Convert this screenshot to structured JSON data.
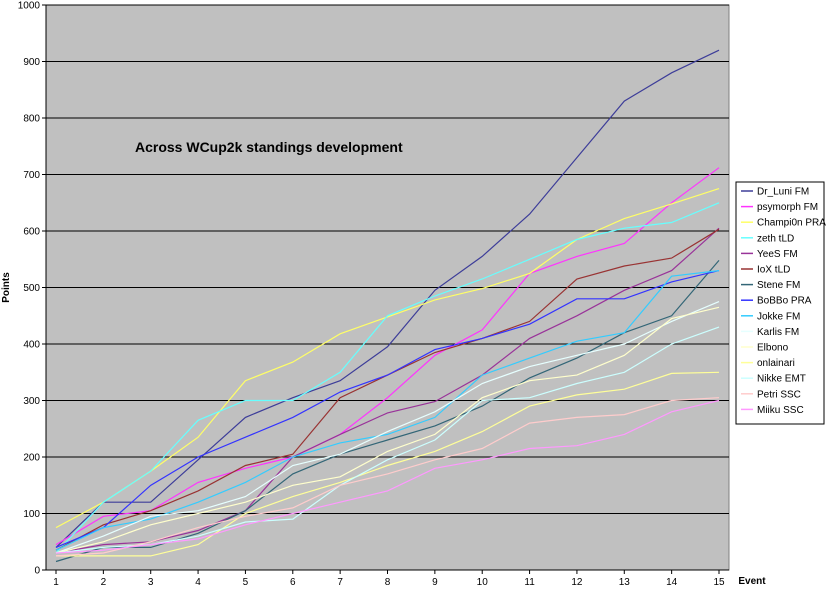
{
  "chart_data": {
    "type": "line",
    "title": "Across WCup2k standings development",
    "xlabel": "Event",
    "ylabel": "Points",
    "x": [
      1,
      2,
      3,
      4,
      5,
      6,
      7,
      8,
      9,
      10,
      11,
      12,
      13,
      14,
      15
    ],
    "ylim": [
      0,
      1000
    ],
    "ytick_step": 100,
    "grid": "horizontal",
    "plot_background": "#c0c0c0",
    "legend_position": "right",
    "series": [
      {
        "name": "Dr_Luni FM",
        "color": "#3d3d99",
        "values": [
          40,
          120,
          120,
          195,
          270,
          305,
          335,
          395,
          495,
          555,
          630,
          730,
          830,
          880,
          920
        ]
      },
      {
        "name": "psymorph FM",
        "color": "#ff33ff",
        "values": [
          45,
          95,
          105,
          155,
          180,
          200,
          240,
          305,
          380,
          425,
          525,
          555,
          578,
          650,
          712
        ]
      },
      {
        "name": "Champi0n PRA",
        "color": "#ffff66",
        "values": [
          75,
          120,
          175,
          235,
          335,
          368,
          418,
          448,
          478,
          498,
          525,
          585,
          622,
          648,
          675
        ]
      },
      {
        "name": "zeth tLD",
        "color": "#66ffff",
        "values": [
          30,
          120,
          175,
          265,
          300,
          300,
          350,
          450,
          485,
          515,
          550,
          585,
          605,
          615,
          650
        ]
      },
      {
        "name": "YeeS FM",
        "color": "#993399",
        "values": [
          30,
          45,
          50,
          70,
          105,
          200,
          240,
          278,
          298,
          345,
          410,
          450,
          495,
          530,
          605
        ]
      },
      {
        "name": "IoX tLD",
        "color": "#993333",
        "values": [
          35,
          80,
          105,
          140,
          185,
          205,
          305,
          345,
          385,
          410,
          440,
          515,
          538,
          552,
          603
        ]
      },
      {
        "name": "Stene FM",
        "color": "#336677",
        "values": [
          15,
          40,
          40,
          65,
          105,
          170,
          205,
          230,
          255,
          290,
          340,
          375,
          420,
          450,
          548
        ]
      },
      {
        "name": "BoBBo PRA",
        "color": "#3333ff",
        "values": [
          40,
          75,
          150,
          200,
          235,
          270,
          315,
          345,
          390,
          410,
          435,
          480,
          480,
          510,
          530
        ]
      },
      {
        "name": "Jokke FM",
        "color": "#33ccff",
        "values": [
          35,
          75,
          90,
          120,
          155,
          200,
          225,
          240,
          270,
          345,
          375,
          405,
          420,
          520,
          530
        ]
      },
      {
        "name": "Karlis FM",
        "color": "#e6ffff",
        "values": [
          30,
          60,
          95,
          105,
          130,
          185,
          205,
          245,
          280,
          330,
          360,
          380,
          400,
          440,
          475
        ]
      },
      {
        "name": "Elbono",
        "color": "#ffffcc",
        "values": [
          30,
          50,
          80,
          100,
          120,
          150,
          165,
          210,
          240,
          305,
          335,
          345,
          380,
          445,
          465
        ]
      },
      {
        "name": "onlainari",
        "color": "#ffff99",
        "values": [
          25,
          25,
          25,
          45,
          100,
          130,
          155,
          185,
          210,
          245,
          290,
          310,
          320,
          348,
          350
        ]
      },
      {
        "name": "Nikke EMT",
        "color": "#ccffff",
        "values": [
          30,
          40,
          45,
          60,
          85,
          90,
          150,
          195,
          230,
          300,
          305,
          330,
          350,
          400,
          430
        ]
      },
      {
        "name": "Petri SSC",
        "color": "#ffcccc",
        "values": [
          25,
          30,
          50,
          75,
          95,
          110,
          150,
          170,
          195,
          215,
          260,
          270,
          275,
          300,
          305
        ]
      },
      {
        "name": "Miiku SSC",
        "color": "#ff99ff",
        "values": [
          30,
          35,
          45,
          55,
          80,
          100,
          120,
          140,
          180,
          195,
          215,
          220,
          240,
          280,
          300
        ]
      }
    ]
  }
}
